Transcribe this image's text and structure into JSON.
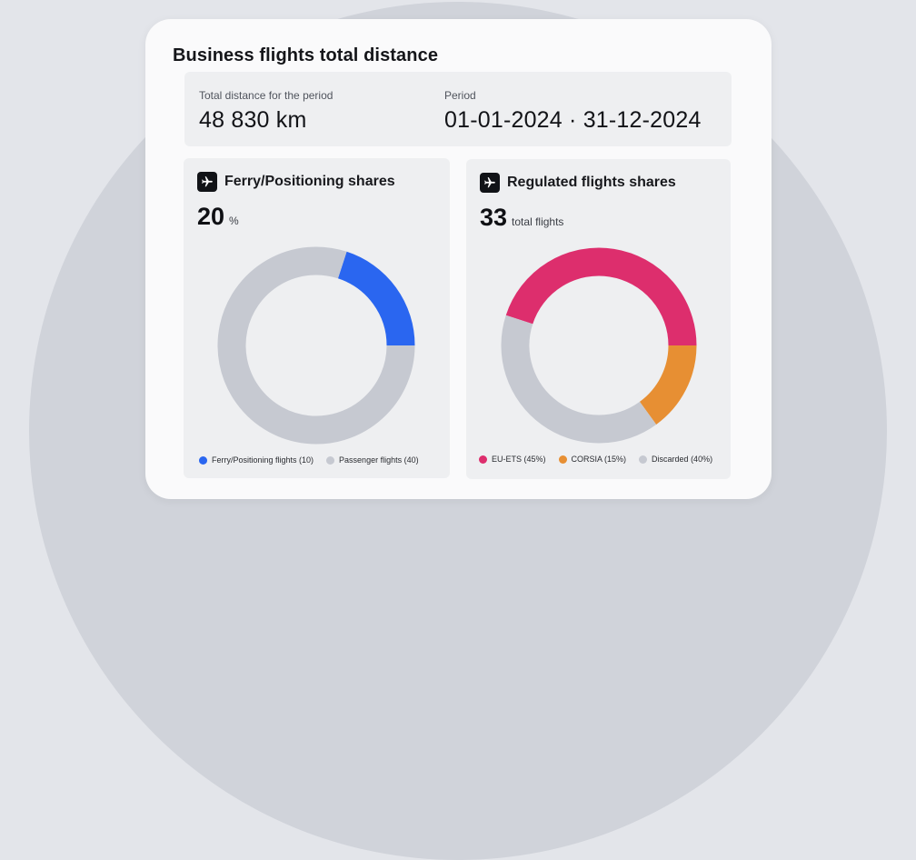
{
  "title": "Business flights total distance",
  "summary": {
    "distance_label": "Total distance for the period",
    "distance_value": "48 830 km",
    "period_label": "Period",
    "period_value": "01-01-2024 · 31-12-2024"
  },
  "colors": {
    "blue": "#2a66f0",
    "pink": "#dd2e6d",
    "orange": "#e78f33",
    "grey": "#c6c9d1"
  },
  "icons": {
    "panel_icon": "airplane-icon"
  },
  "panels": [
    {
      "title": "Ferry/Positioning shares",
      "kpi_value": "20",
      "kpi_unit": "%",
      "legend": [
        "Ferry/Positioning flights (10)",
        "Passenger flights (40)"
      ]
    },
    {
      "title": "Regulated flights shares",
      "kpi_value": "33",
      "kpi_unit": "total flights",
      "legend": [
        "EU-ETS (45%)",
        "CORSIA (15%)",
        "Discarded (40%)"
      ]
    }
  ],
  "chart_data": [
    {
      "type": "pie",
      "title": "Ferry/Positioning shares",
      "donut": true,
      "legend_position": "bottom",
      "series": [
        {
          "name": "Ferry/Positioning flights (10)",
          "value": 10,
          "color": "#2a66f0"
        },
        {
          "name": "Passenger flights (40)",
          "value": 40,
          "color": "#c6c9d1"
        }
      ]
    },
    {
      "type": "pie",
      "title": "Regulated flights shares",
      "donut": true,
      "legend_position": "bottom",
      "series": [
        {
          "name": "EU-ETS (45%)",
          "value": 45,
          "color": "#dd2e6d"
        },
        {
          "name": "CORSIA (15%)",
          "value": 15,
          "color": "#e78f33"
        },
        {
          "name": "Discarded (40%)",
          "value": 40,
          "color": "#c6c9d1"
        }
      ]
    }
  ]
}
